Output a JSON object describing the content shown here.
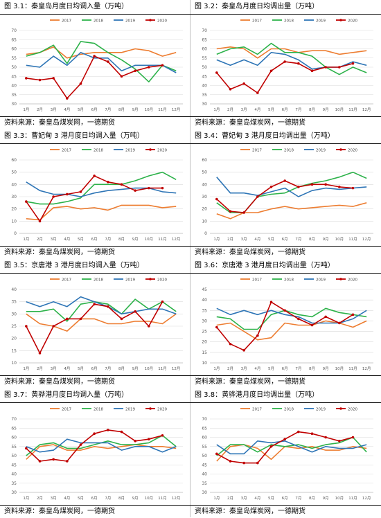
{
  "colors": {
    "2017": "#ED7D31",
    "2018": "#2DB24A",
    "2019": "#2E75B6",
    "2020": "#C00000"
  },
  "panels": [
    {
      "title": "图 3.1：秦皇岛月度日均调入量（万吨）",
      "source": "资料来源：秦皇岛煤炭网，一德期货",
      "chart_data": {
        "type": "line",
        "categories": [
          "1月",
          "2月",
          "3月",
          "4月",
          "5月",
          "6月",
          "7月",
          "8月",
          "9月",
          "10月",
          "11月",
          "12月"
        ],
        "ylim": [
          30,
          70
        ],
        "yticks": [
          30,
          35,
          40,
          45,
          50,
          55,
          60,
          65,
          70
        ],
        "legend_position": "top",
        "grid": true,
        "series": [
          {
            "name": "2017",
            "values": [
              57,
              58,
              61,
              55,
              57,
              58,
              58,
              58,
              60,
              59,
              56,
              58
            ]
          },
          {
            "name": "2018",
            "values": [
              56,
              58,
              62,
              52,
              64,
              63,
              58,
              54,
              49,
              42,
              51,
              48
            ]
          },
          {
            "name": "2019",
            "values": [
              51,
              50,
              56,
              51,
              58,
              55,
              55,
              48,
              51,
              51,
              51,
              47
            ]
          },
          {
            "name": "2020",
            "values": [
              44,
              43,
              44,
              33,
              41,
              56,
              53,
              45,
              48,
              50,
              51,
              null
            ]
          }
        ]
      }
    },
    {
      "title": "图 3.2：秦皇岛月度日均调出量（万吨）",
      "source": "资料来源：秦皇岛煤炭网，一德期货",
      "chart_data": {
        "type": "line",
        "categories": [
          "1月",
          "2月",
          "3月",
          "4月",
          "5月",
          "6月",
          "7月",
          "8月",
          "9月",
          "10月",
          "11月",
          "12月"
        ],
        "ylim": [
          30,
          70
        ],
        "yticks": [
          30,
          35,
          40,
          45,
          50,
          55,
          60,
          65,
          70
        ],
        "legend_position": "top",
        "grid": true,
        "series": [
          {
            "name": "2017",
            "values": [
              60,
              61,
              60,
              55,
              60,
              60,
              58,
              59,
              59,
              57,
              58,
              59
            ]
          },
          {
            "name": "2018",
            "values": [
              57,
              60,
              61,
              57,
              63,
              58,
              58,
              56,
              50,
              46,
              50,
              47
            ]
          },
          {
            "name": "2019",
            "values": [
              54,
              51,
              54,
              51,
              58,
              57,
              54,
              49,
              50,
              50,
              53,
              51
            ]
          },
          {
            "name": "2020",
            "values": [
              47,
              38,
              41,
              36,
              48,
              53,
              52,
              48,
              50,
              50,
              52,
              null
            ]
          }
        ]
      }
    },
    {
      "title": "图 3.3：曹妃甸 3 港月度日均调入量（万吨）",
      "source": "资料来源：秦皇岛煤炭网，一德期货",
      "chart_data": {
        "type": "line",
        "categories": [
          "1月",
          "2月",
          "3月",
          "4月",
          "5月",
          "6月",
          "7月",
          "8月",
          "9月",
          "10月",
          "11月",
          "12月"
        ],
        "ylim": [
          0,
          60
        ],
        "yticks": [
          0,
          10,
          20,
          30,
          40,
          50,
          60
        ],
        "legend_position": "top",
        "grid": true,
        "series": [
          {
            "name": "2017",
            "values": [
              12,
              11,
              21,
              22,
              20,
              21,
              19,
              23,
              23,
              23,
              21,
              22
            ]
          },
          {
            "name": "2018",
            "values": [
              26,
              24,
              24,
              26,
              29,
              40,
              40,
              40,
              43,
              47,
              50,
              44
            ]
          },
          {
            "name": "2019",
            "values": [
              42,
              35,
              32,
              32,
              30,
              33,
              35,
              36,
              37,
              37,
              34,
              33
            ]
          },
          {
            "name": "2020",
            "values": [
              26,
              10,
              30,
              32,
              34,
              47,
              42,
              40,
              35,
              37,
              37,
              null
            ]
          }
        ]
      }
    },
    {
      "title": "图 3.4：曹妃甸 3 港月度日均调出量（万吨）",
      "source": "资料来源：秦皇岛煤炭网，一德期货",
      "chart_data": {
        "type": "line",
        "categories": [
          "1月",
          "2月",
          "3月",
          "4月",
          "5月",
          "6月",
          "7月",
          "8月",
          "9月",
          "10月",
          "11月",
          "12月"
        ],
        "ylim": [
          0,
          60
        ],
        "yticks": [
          0,
          10,
          20,
          30,
          40,
          50,
          60
        ],
        "legend_position": "top",
        "grid": true,
        "series": [
          {
            "name": "2017",
            "values": [
              16,
              12,
              17,
              17,
              20,
              22,
              20,
              21,
              22,
              23,
              22,
              25
            ]
          },
          {
            "name": "2018",
            "values": [
              25,
              17,
              17,
              30,
              32,
              33,
              38,
              41,
              43,
              46,
              50,
              45
            ]
          },
          {
            "name": "2019",
            "values": [
              46,
              33,
              33,
              31,
              34,
              37,
              30,
              35,
              37,
              36,
              37,
              38
            ]
          },
          {
            "name": "2020",
            "values": [
              28,
              18,
              17,
              30,
              38,
              43,
              38,
              40,
              40,
              38,
              37,
              null
            ]
          }
        ]
      }
    },
    {
      "title": "图 3.5：京唐港 3 港月度日均调入量（万吨）",
      "source": "资料来源：秦皇岛煤炭网，一德期货",
      "chart_data": {
        "type": "line",
        "categories": [
          "1月",
          "2月",
          "3月",
          "4月",
          "5月",
          "6月",
          "7月",
          "8月",
          "9月",
          "10月",
          "11月",
          "12月"
        ],
        "ylim": [
          10,
          40
        ],
        "yticks": [
          10,
          15,
          20,
          25,
          30,
          35,
          40
        ],
        "legend_position": "top",
        "grid": true,
        "series": [
          {
            "name": "2017",
            "values": [
              30,
              26,
              25,
              23,
              28,
              28,
              26,
              26,
              27,
              27,
              26,
              30
            ]
          },
          {
            "name": "2018",
            "values": [
              31,
              31,
              32,
              27,
              34,
              35,
              34,
              30,
              36,
              32,
              35,
              31
            ]
          },
          {
            "name": "2019",
            "values": [
              35,
              33,
              35,
              33,
              37,
              35,
              33,
              30,
              31,
              32,
              32,
              30
            ]
          },
          {
            "name": "2020",
            "values": [
              25,
              14,
              25,
              28,
              28,
              34,
              33,
              28,
              31,
              25,
              35,
              null
            ]
          }
        ]
      }
    },
    {
      "title": "图 3.6：京唐港 3 港月度日均调出量（万吨）",
      "source": "资料来源：秦皇岛煤炭网，一德期货",
      "chart_data": {
        "type": "line",
        "categories": [
          "1月",
          "2月",
          "3月",
          "4月",
          "5月",
          "6月",
          "7月",
          "8月",
          "9月",
          "10月",
          "11月",
          "12月"
        ],
        "ylim": [
          10,
          45
        ],
        "yticks": [
          10,
          15,
          20,
          25,
          30,
          35,
          40,
          45
        ],
        "legend_position": "top",
        "grid": true,
        "series": [
          {
            "name": "2017",
            "values": [
              28,
              29,
              25,
              21,
              22,
              29,
              28,
              28,
              30,
              29,
              27,
              30
            ]
          },
          {
            "name": "2018",
            "values": [
              32,
              31,
              26,
              26,
              33,
              35,
              33,
              32,
              36,
              34,
              33,
              32
            ]
          },
          {
            "name": "2019",
            "values": [
              36,
              33,
              35,
              33,
              35,
              33,
              32,
              29,
              29,
              29,
              31,
              35
            ]
          },
          {
            "name": "2020",
            "values": [
              27,
              19,
              16,
              23,
              39,
              35,
              31,
              28,
              32,
              29,
              33,
              null
            ]
          }
        ]
      }
    },
    {
      "title": "图 3.7：黄骅港月度日均调入量（万吨）",
      "source": "资料来源：秦皇岛煤炭网，一德期货",
      "chart_data": {
        "type": "line",
        "categories": [
          "1月",
          "2月",
          "3月",
          "4月",
          "5月",
          "6月",
          "7月",
          "8月",
          "9月",
          "10月",
          "11月",
          "12月"
        ],
        "ylim": [
          30,
          70
        ],
        "yticks": [
          30,
          35,
          40,
          45,
          50,
          55,
          60,
          65,
          70
        ],
        "legend_position": "top",
        "grid": true,
        "series": [
          {
            "name": "2017",
            "values": [
              48,
              55,
              56,
              53,
              53,
              55,
              54,
              55,
              56,
              55,
              55,
              54
            ]
          },
          {
            "name": "2018",
            "values": [
              50,
              56,
              57,
              54,
              54,
              56,
              58,
              56,
              56,
              57,
              61,
              55
            ]
          },
          {
            "name": "2019",
            "values": [
              55,
              52,
              53,
              59,
              57,
              57,
              57,
              53,
              55,
              55,
              52,
              55
            ]
          },
          {
            "name": "2020",
            "values": [
              54,
              47,
              48,
              47,
              56,
              62,
              64,
              63,
              58,
              59,
              61,
              null
            ]
          }
        ]
      }
    },
    {
      "title": "图 3.8：黄骅港月度日均调出量（万吨）",
      "source": "资料来源：秦皇岛煤炭网，一德期货",
      "chart_data": {
        "type": "line",
        "categories": [
          "1月",
          "2月",
          "3月",
          "4月",
          "5月",
          "6月",
          "7月",
          "8月",
          "9月",
          "10月",
          "11月",
          "12月"
        ],
        "ylim": [
          30,
          70
        ],
        "yticks": [
          30,
          35,
          40,
          45,
          50,
          55,
          60,
          65,
          70
        ],
        "legend_position": "top",
        "grid": true,
        "series": [
          {
            "name": "2017",
            "values": [
              47,
              55,
              56,
              54,
              48,
              55,
              54,
              55,
              53,
              53,
              55,
              54
            ]
          },
          {
            "name": "2018",
            "values": [
              50,
              56,
              56,
              52,
              56,
              55,
              56,
              54,
              56,
              57,
              60,
              52
            ]
          },
          {
            "name": "2019",
            "values": [
              56,
              51,
              51,
              58,
              57,
              58,
              55,
              52,
              55,
              54,
              54,
              56
            ]
          },
          {
            "name": "2020",
            "values": [
              51,
              47,
              46,
              46,
              55,
              59,
              63,
              62,
              60,
              58,
              60,
              null
            ]
          }
        ]
      }
    }
  ]
}
